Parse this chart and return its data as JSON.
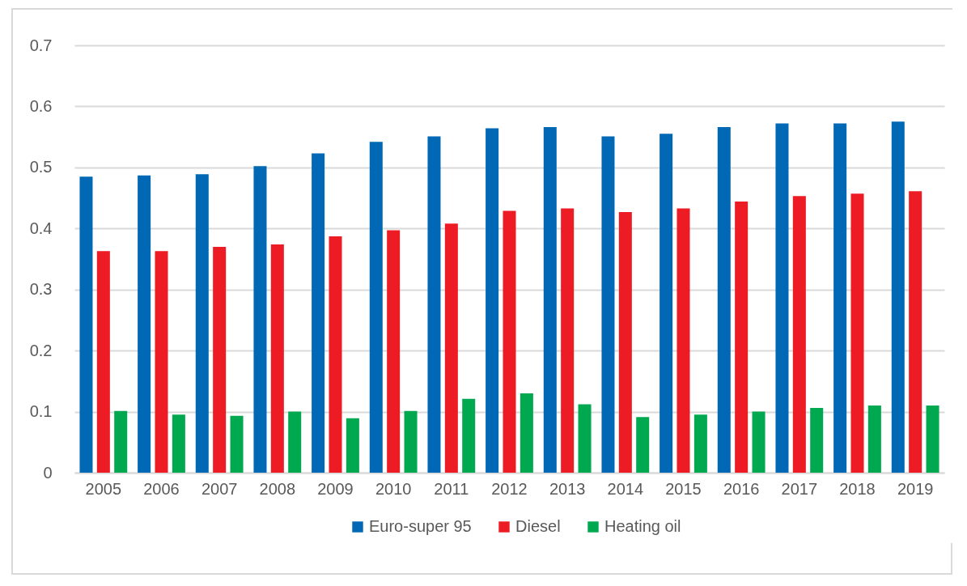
{
  "chart_data": {
    "type": "bar",
    "categories": [
      "2005",
      "2006",
      "2007",
      "2008",
      "2009",
      "2010",
      "2011",
      "2012",
      "2013",
      "2014",
      "2015",
      "2016",
      "2017",
      "2018",
      "2019"
    ],
    "series": [
      {
        "name": "Euro-super 95",
        "color": "#0068b5",
        "values": [
          0.485,
          0.487,
          0.489,
          0.502,
          0.523,
          0.542,
          0.551,
          0.564,
          0.566,
          0.551,
          0.555,
          0.566,
          0.572,
          0.572,
          0.575
        ]
      },
      {
        "name": "Diesel",
        "color": "#ed1c24",
        "values": [
          0.363,
          0.363,
          0.37,
          0.374,
          0.387,
          0.397,
          0.408,
          0.429,
          0.433,
          0.427,
          0.433,
          0.444,
          0.453,
          0.457,
          0.461
        ]
      },
      {
        "name": "Heating oil",
        "color": "#00a94f",
        "values": [
          0.101,
          0.095,
          0.093,
          0.1,
          0.089,
          0.101,
          0.121,
          0.13,
          0.112,
          0.091,
          0.095,
          0.1,
          0.106,
          0.11,
          0.11
        ]
      }
    ],
    "ylim": [
      0,
      0.7
    ],
    "yticks": [
      {
        "value": 0,
        "label": "0"
      },
      0.1,
      0.2,
      0.3,
      0.4,
      0.5,
      0.6,
      0.7
    ],
    "grid": "y",
    "legend": "bottom"
  }
}
